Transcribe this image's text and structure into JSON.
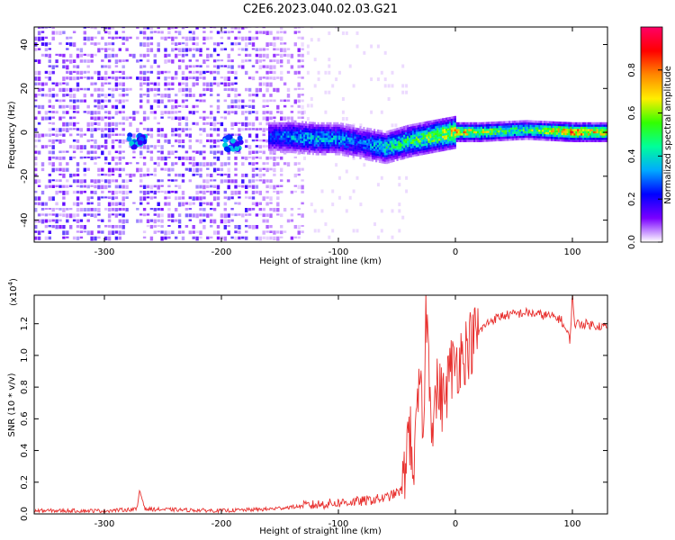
{
  "title": "C2E6.2023.040.02.03.G21",
  "chart_data": [
    {
      "type": "heatmap",
      "xlabel": "Height of straight line (km)",
      "ylabel": "Frequency (Hz)",
      "xlim": [
        -360,
        130
      ],
      "ylim": [
        -50,
        48
      ],
      "xticks": [
        -300,
        -200,
        -100,
        0,
        100
      ],
      "yticks": [
        -40,
        -20,
        0,
        20,
        40
      ],
      "colorbar": {
        "label": "Normalized spectral amplitude",
        "range": [
          0.0,
          1.0
        ],
        "ticks": [
          "0.0",
          "0.2",
          "0.4",
          "0.6",
          "0.8"
        ],
        "colormap": [
          "#ffffff",
          "#7a00ff",
          "#0000ff",
          "#00aaff",
          "#00ff99",
          "#33ff00",
          "#ffee00",
          "#ff8800",
          "#ff0000",
          "#ff0066"
        ]
      },
      "ridge": {
        "description_points_x": [
          -160,
          -140,
          -120,
          -100,
          -80,
          -60,
          -40,
          -20,
          0,
          20,
          60,
          100,
          125
        ],
        "frequency_hz": [
          -2,
          -2,
          -3,
          -3,
          -5,
          -7,
          -4,
          -2,
          0,
          0,
          1,
          0,
          0
        ],
        "amplitude": [
          0.25,
          0.35,
          0.4,
          0.35,
          0.3,
          0.45,
          0.5,
          0.6,
          0.75,
          0.65,
          0.5,
          0.85,
          0.7
        ]
      },
      "noise_region_x": [
        -360,
        -130
      ],
      "strong_features": [
        {
          "x": -272,
          "y": -4
        },
        {
          "x": -190,
          "y": -5
        }
      ]
    },
    {
      "type": "line",
      "xlabel": "Height of straight line (km)",
      "ylabel": "SNR (10 * v/v)",
      "scale_label": "(x10",
      "scale_exponent": "4",
      "scale_suffix": ")",
      "xlim": [
        -360,
        130
      ],
      "ylim": [
        0.0,
        1.38
      ],
      "xticks": [
        -300,
        -200,
        -100,
        0,
        100
      ],
      "yticks": [
        "0.0",
        "0.2",
        "0.4",
        "0.6",
        "0.8",
        "1.0",
        "1.2"
      ],
      "color": "#e8312f",
      "series": [
        {
          "x": [
            -360,
            -300,
            -272,
            -270,
            -265,
            -200,
            -160,
            -130,
            -100,
            -80,
            -60,
            -45,
            -40,
            -35,
            -30,
            -28,
            -25,
            -20,
            -15,
            -10,
            -5,
            0,
            10,
            20,
            30,
            40,
            60,
            80,
            90,
            98,
            100,
            102,
            110,
            130
          ],
          "y": [
            0.02,
            0.02,
            0.03,
            0.15,
            0.03,
            0.02,
            0.03,
            0.05,
            0.07,
            0.08,
            0.1,
            0.15,
            0.55,
            0.3,
            0.9,
            0.4,
            1.3,
            0.6,
            0.8,
            0.7,
            0.9,
            0.95,
            1.05,
            1.15,
            1.22,
            1.25,
            1.27,
            1.25,
            1.23,
            1.1,
            1.38,
            1.2,
            1.2,
            1.18
          ]
        }
      ]
    }
  ]
}
